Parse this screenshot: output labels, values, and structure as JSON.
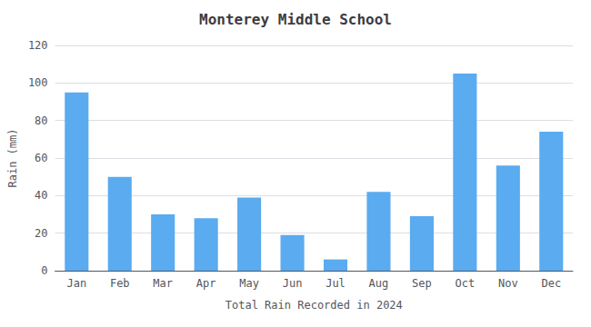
{
  "chart_data": {
    "type": "bar",
    "title": "Monterey Middle School",
    "xlabel": "Total Rain Recorded in 2024",
    "ylabel": "Rain (mm)",
    "categories": [
      "Jan",
      "Feb",
      "Mar",
      "Apr",
      "May",
      "Jun",
      "Jul",
      "Aug",
      "Sep",
      "Oct",
      "Nov",
      "Dec"
    ],
    "values": [
      95,
      50,
      30,
      28,
      39,
      19,
      6,
      42,
      29,
      105,
      56,
      74
    ],
    "color": "#5aabf0",
    "ylim": [
      0,
      120
    ],
    "yticks": [
      0,
      20,
      40,
      60,
      80,
      100,
      120
    ],
    "grid": true
  }
}
